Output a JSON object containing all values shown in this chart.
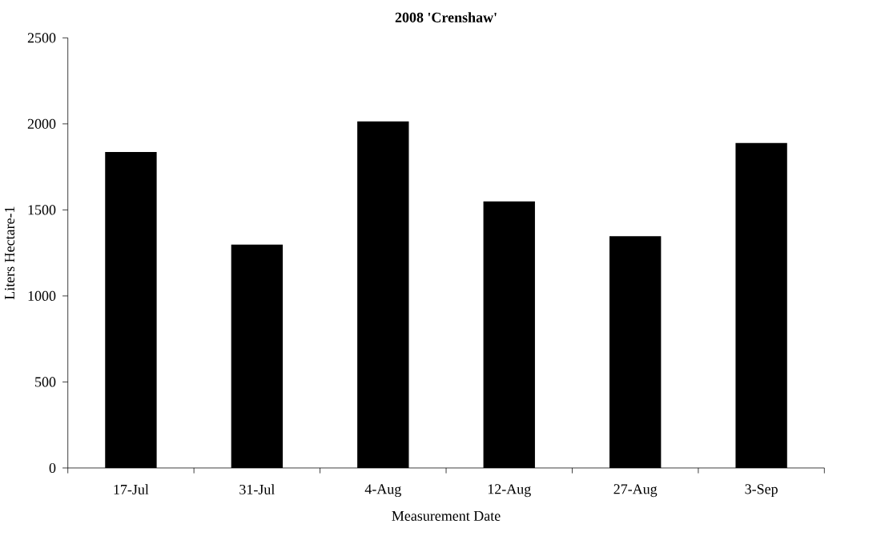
{
  "chart_data": {
    "type": "bar",
    "title": "2008 'Crenshaw'",
    "xlabel": "Measurement Date",
    "ylabel": "Liters Hectare-1",
    "categories": [
      "17-Jul",
      "31-Jul",
      "4-Aug",
      "12-Aug",
      "27-Aug",
      "3-Sep"
    ],
    "values": [
      1836,
      1298,
      2014,
      1549,
      1347,
      1889
    ],
    "color": "#000000",
    "ylim": [
      0,
      2500
    ],
    "yticks": [
      0,
      500,
      1000,
      1500,
      2000,
      2500
    ]
  }
}
